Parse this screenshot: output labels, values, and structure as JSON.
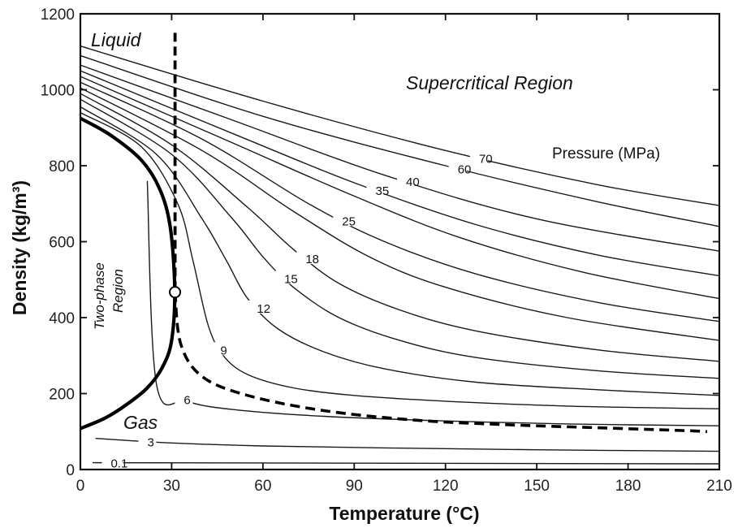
{
  "chart_data": {
    "type": "line",
    "title": "",
    "xlabel": "Temperature (°C)",
    "ylabel": "Density (kg/m³)",
    "xlim": [
      0,
      210
    ],
    "ylim": [
      0,
      1200
    ],
    "xticks": [
      0,
      30,
      60,
      90,
      120,
      150,
      180,
      210
    ],
    "yticks": [
      0,
      200,
      400,
      600,
      800,
      1000,
      1200
    ],
    "grid": false,
    "annotations": {
      "liquid": "Liquid",
      "gas": "Gas",
      "supercritical": "Supercritical Region",
      "two_phase_line1": "Two-phase",
      "two_phase_line2": "Region",
      "pressure_title": "Pressure (MPa)"
    },
    "series": [
      {
        "name": "0.1",
        "x": [
          4,
          210
        ],
        "y": [
          18,
          15
        ]
      },
      {
        "name": "3",
        "x": [
          5,
          30,
          60,
          100,
          150,
          210
        ],
        "y": [
          82,
          70,
          62,
          57,
          52,
          48
        ]
      },
      {
        "name": "6",
        "x": [
          22,
          25,
          35,
          50,
          80,
          120,
          160,
          210
        ],
        "y": [
          760,
          225,
          180,
          158,
          140,
          128,
          120,
          115
        ]
      },
      {
        "name": "9",
        "x": [
          0,
          20,
          32,
          37,
          42,
          47,
          55,
          70,
          90,
          120,
          160,
          210
        ],
        "y": [
          940,
          850,
          700,
          550,
          380,
          300,
          250,
          215,
          195,
          180,
          167,
          160
        ]
      },
      {
        "name": "12",
        "x": [
          0,
          25,
          40,
          48,
          55,
          65,
          80,
          100,
          130,
          170,
          210
        ],
        "y": [
          955,
          830,
          660,
          550,
          450,
          370,
          310,
          265,
          230,
          210,
          195
        ]
      },
      {
        "name": "15",
        "x": [
          0,
          30,
          50,
          60,
          70,
          85,
          105,
          130,
          170,
          210
        ],
        "y": [
          975,
          830,
          660,
          560,
          480,
          400,
          340,
          295,
          260,
          240
        ]
      },
      {
        "name": "18",
        "x": [
          0,
          30,
          55,
          70,
          85,
          105,
          130,
          170,
          210
        ],
        "y": [
          990,
          855,
          690,
          580,
          490,
          420,
          365,
          315,
          285
        ]
      },
      {
        "name": "",
        "x": [
          0,
          40,
          70,
          95,
          120,
          160,
          210
        ],
        "y": [
          1005,
          840,
          680,
          560,
          480,
          400,
          340
        ]
      },
      {
        "name": "25",
        "x": [
          0,
          40,
          75,
          100,
          130,
          170,
          210
        ],
        "y": [
          1020,
          870,
          700,
          600,
          515,
          440,
          390
        ]
      },
      {
        "name": "",
        "x": [
          0,
          50,
          90,
          125,
          165,
          210
        ],
        "y": [
          1035,
          860,
          720,
          610,
          520,
          450
        ]
      },
      {
        "name": "35",
        "x": [
          0,
          50,
          90,
          130,
          170,
          210
        ],
        "y": [
          1050,
          885,
          755,
          645,
          565,
          510
        ]
      },
      {
        "name": "40",
        "x": [
          0,
          50,
          100,
          150,
          210
        ],
        "y": [
          1065,
          920,
          775,
          660,
          575
        ]
      },
      {
        "name": "60",
        "x": [
          0,
          60,
          120,
          170,
          210
        ],
        "y": [
          1090,
          930,
          800,
          705,
          640
        ]
      },
      {
        "name": "70",
        "x": [
          0,
          60,
          120,
          170,
          210
        ],
        "y": [
          1115,
          970,
          840,
          750,
          695
        ]
      }
    ],
    "saturation_curve": {
      "x": [
        0,
        10,
        20,
        26,
        29.5,
        31,
        30,
        27,
        22,
        15,
        8,
        0
      ],
      "y": [
        925,
        880,
        815,
        740,
        640,
        475,
        340,
        270,
        215,
        170,
        135,
        108
      ]
    },
    "critical_point": {
      "x": 31.1,
      "y": 467
    },
    "critical_isotherm": {
      "x": [
        31.1,
        31.1
      ],
      "y": [
        1150,
        467
      ]
    },
    "critical_isochore": {
      "x": [
        31.1,
        33,
        40,
        55,
        80,
        110,
        140,
        170,
        200,
        206
      ],
      "y": [
        467,
        330,
        245,
        195,
        155,
        130,
        118,
        110,
        102,
        100
      ]
    }
  }
}
